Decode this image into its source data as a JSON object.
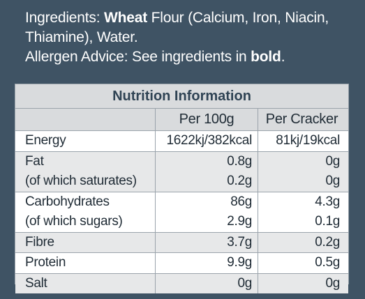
{
  "ingredients": {
    "prefix": "Ingredients: ",
    "bold_word": "Wheat",
    "rest": " Flour (Calcium, Iron, Niacin, Thiamine), Water.",
    "allergen_prefix": "Allergen Advice: See ingredients in ",
    "allergen_bold": "bold",
    "allergen_suffix": "."
  },
  "nutrition": {
    "title": "Nutrition Information",
    "col_per100": "Per 100g",
    "col_percracker": "Per Cracker",
    "rows": [
      {
        "label": "Energy",
        "per100": "1622kj/382kcal",
        "per": "81kj/19kcal"
      },
      {
        "label": "Fat",
        "per100": "0.8g",
        "per": "0g"
      },
      {
        "label": "(of which saturates)",
        "per100": "0.2g",
        "per": "0g"
      },
      {
        "label": "Carbohydrates",
        "per100": "86g",
        "per": "4.3g"
      },
      {
        "label": "(of which sugars)",
        "per100": "2.9g",
        "per": "0.1g"
      },
      {
        "label": "Fibre",
        "per100": "3.7g",
        "per": "0.2g"
      },
      {
        "label": "Protein",
        "per100": "9.9g",
        "per": "0.5g"
      },
      {
        "label": "Salt",
        "per100": "0g",
        "per": "0g"
      }
    ]
  }
}
